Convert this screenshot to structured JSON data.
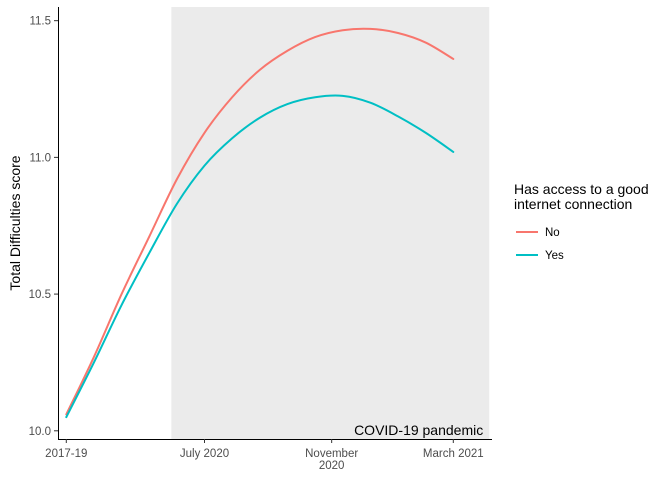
{
  "chart_data": {
    "type": "line",
    "title": "",
    "xlabel": "",
    "ylabel": "Total Difficulties score",
    "x_ticks": [
      {
        "x": 0,
        "label": "2017-19"
      },
      {
        "x": 5,
        "label": "July 2020"
      },
      {
        "x": 9.6,
        "label": "November\n2020"
      },
      {
        "x": 14,
        "label": "March 2021"
      }
    ],
    "xlim": [
      -0.3,
      15.4
    ],
    "ylim": [
      9.97,
      11.55
    ],
    "y_ticks": [
      10.0,
      10.5,
      11.0,
      11.5
    ],
    "y_tick_labels": [
      "10.0",
      "10.5",
      "11.0",
      "11.5"
    ],
    "grid": false,
    "shaded_region": {
      "x_start": 3.8,
      "x_end": 15.3,
      "label": "COVID-19 pandemic",
      "color": "#ebebeb"
    },
    "legend": {
      "title": "Has access to a good\ninternet connection",
      "position": "right",
      "entries": [
        {
          "name": "No",
          "color": "#F8766D"
        },
        {
          "name": "Yes",
          "color": "#00BFC4"
        }
      ]
    },
    "series": [
      {
        "name": "No",
        "color": "#F8766D",
        "x": [
          0,
          1,
          2,
          3,
          4,
          5,
          6,
          7,
          8,
          9,
          10,
          11,
          12,
          13,
          14
        ],
        "y": [
          10.06,
          10.27,
          10.5,
          10.71,
          10.92,
          11.09,
          11.22,
          11.32,
          11.39,
          11.44,
          11.465,
          11.47,
          11.455,
          11.42,
          11.36
        ]
      },
      {
        "name": "Yes",
        "color": "#00BFC4",
        "x": [
          0,
          1,
          2,
          3,
          4,
          5,
          6,
          7,
          8,
          9,
          10,
          11,
          12,
          13,
          14
        ],
        "y": [
          10.05,
          10.25,
          10.46,
          10.65,
          10.83,
          10.97,
          11.07,
          11.145,
          11.195,
          11.22,
          11.225,
          11.2,
          11.15,
          11.09,
          11.02
        ]
      }
    ]
  }
}
